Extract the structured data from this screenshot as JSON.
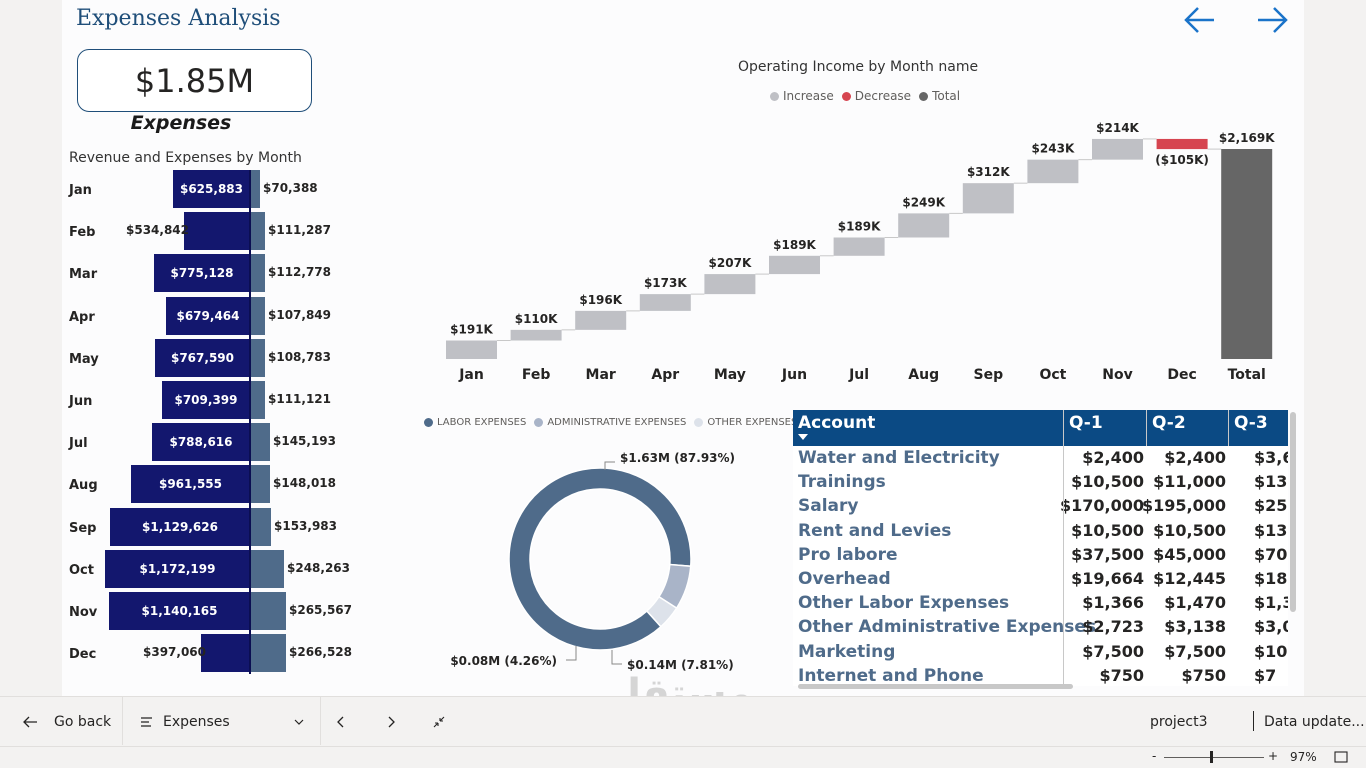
{
  "page": {
    "title": "Expenses Analysis"
  },
  "nav": {
    "back_icon": "arrow-left-icon",
    "forward_icon": "arrow-right-icon",
    "color": "#1a73c9"
  },
  "kpi": {
    "value": "$1.85M",
    "label": "Expenses"
  },
  "revenue_chart": {
    "title": "Revenue and Expenses by Month",
    "rows": [
      {
        "month": "Jan",
        "revenue": 625883,
        "revenue_label": "$625,883",
        "expense": 70388,
        "expense_label": "$70,388"
      },
      {
        "month": "Feb",
        "revenue": 534842,
        "revenue_label": "$534,842",
        "expense": 111287,
        "expense_label": "$111,287"
      },
      {
        "month": "Mar",
        "revenue": 775128,
        "revenue_label": "$775,128",
        "expense": 112778,
        "expense_label": "$112,778"
      },
      {
        "month": "Apr",
        "revenue": 679464,
        "revenue_label": "$679,464",
        "expense": 107849,
        "expense_label": "$107,849"
      },
      {
        "month": "May",
        "revenue": 767590,
        "revenue_label": "$767,590",
        "expense": 108783,
        "expense_label": "$108,783"
      },
      {
        "month": "Jun",
        "revenue": 709399,
        "revenue_label": "$709,399",
        "expense": 111121,
        "expense_label": "$111,121"
      },
      {
        "month": "Jul",
        "revenue": 788616,
        "revenue_label": "$788,616",
        "expense": 145193,
        "expense_label": "$145,193"
      },
      {
        "month": "Aug",
        "revenue": 961555,
        "revenue_label": "$961,555",
        "expense": 148018,
        "expense_label": "$148,018"
      },
      {
        "month": "Sep",
        "revenue": 1129626,
        "revenue_label": "$1,129,626",
        "expense": 153983,
        "expense_label": "$153,983"
      },
      {
        "month": "Oct",
        "revenue": 1172199,
        "revenue_label": "$1,172,199",
        "expense": 248263,
        "expense_label": "$248,263"
      },
      {
        "month": "Nov",
        "revenue": 1140165,
        "revenue_label": "$1,140,165",
        "expense": 265567,
        "expense_label": "$265,567"
      },
      {
        "month": "Dec",
        "revenue": 397060,
        "revenue_label": "$397,060",
        "expense": 266528,
        "expense_label": "$266,528"
      }
    ]
  },
  "chart_data": [
    {
      "type": "bar",
      "orientation": "horizontal-diverging",
      "title": "Revenue and Expenses by Month",
      "categories": [
        "Jan",
        "Feb",
        "Mar",
        "Apr",
        "May",
        "Jun",
        "Jul",
        "Aug",
        "Sep",
        "Oct",
        "Nov",
        "Dec"
      ],
      "series": [
        {
          "name": "Revenue",
          "values": [
            625883,
            534842,
            775128,
            679464,
            767590,
            709399,
            788616,
            961555,
            1129626,
            1172199,
            1140165,
            397060
          ]
        },
        {
          "name": "Expenses",
          "values": [
            70388,
            111287,
            112778,
            107849,
            108783,
            111121,
            145193,
            148018,
            153983,
            248263,
            265567,
            266528
          ]
        }
      ]
    },
    {
      "type": "waterfall",
      "title": "Operating Income by Month name",
      "legend": [
        {
          "label": "Increase",
          "color": "#bfc0c5"
        },
        {
          "label": "Decrease",
          "color": "#d64550"
        },
        {
          "label": "Total",
          "color": "#666666"
        }
      ],
      "categories": [
        "Jan",
        "Feb",
        "Mar",
        "Apr",
        "May",
        "Jun",
        "Jul",
        "Aug",
        "Sep",
        "Oct",
        "Nov",
        "Dec",
        "Total"
      ],
      "values": [
        191,
        110,
        196,
        173,
        207,
        189,
        189,
        249,
        312,
        243,
        214,
        -105,
        2169
      ],
      "labels": [
        "$191K",
        "$110K",
        "$196K",
        "$173K",
        "$207K",
        "$189K",
        "$189K",
        "$249K",
        "$312K",
        "$243K",
        "$214K",
        "($105K)",
        "$2,169K"
      ],
      "unit": "K"
    },
    {
      "type": "pie",
      "variant": "donut",
      "legend": [
        {
          "label": "LABOR EXPENSES",
          "color": "#4f6b8a"
        },
        {
          "label": "ADMINISTRATIVE EXPENSES",
          "color": "#a9b4c8"
        },
        {
          "label": "OTHER EXPENSES",
          "color": "#dde2ea"
        }
      ],
      "slices": [
        {
          "name": "LABOR EXPENSES",
          "value": 87.93,
          "label": "$1.63M (87.93%)"
        },
        {
          "name": "ADMINISTRATIVE EXPENSES",
          "value": 7.81,
          "label": "$0.14M (7.81%)"
        },
        {
          "name": "OTHER EXPENSES",
          "value": 4.26,
          "label": "$0.08M (4.26%)"
        }
      ]
    },
    {
      "type": "table",
      "columns": [
        "Account",
        "Q-1",
        "Q-2",
        "Q-3"
      ],
      "rows": [
        [
          "Water and Electricity",
          "$2,400",
          "$2,400",
          "$3,6"
        ],
        [
          "Trainings",
          "$10,500",
          "$11,000",
          "$13,5"
        ],
        [
          "Salary",
          "$170,000",
          "$195,000",
          "$255,0"
        ],
        [
          "Rent and Levies",
          "$10,500",
          "$10,500",
          "$13,5"
        ],
        [
          "Pro labore",
          "$37,500",
          "$45,000",
          "$70,0"
        ],
        [
          "Overhead",
          "$19,664",
          "$12,445",
          "$18,1"
        ],
        [
          "Other Labor Expenses",
          "$1,366",
          "$1,470",
          "$1,3"
        ],
        [
          "Other Administrative Expenses",
          "$2,723",
          "$3,138",
          "$3,0"
        ],
        [
          "Marketing",
          "$7,500",
          "$7,500",
          "$10,5"
        ],
        [
          "Internet and Phone",
          "$750",
          "$750",
          "$7"
        ]
      ]
    }
  ],
  "bottom_bar": {
    "go_back": "Go back",
    "page_select": "Expenses",
    "workspace": "project3",
    "data_updated": "Data update..."
  },
  "status": {
    "zoom": "97%",
    "minus": "-",
    "plus": "+"
  },
  "watermark": {
    "arabic": "مستقل",
    "latin": "mostaql.com"
  }
}
